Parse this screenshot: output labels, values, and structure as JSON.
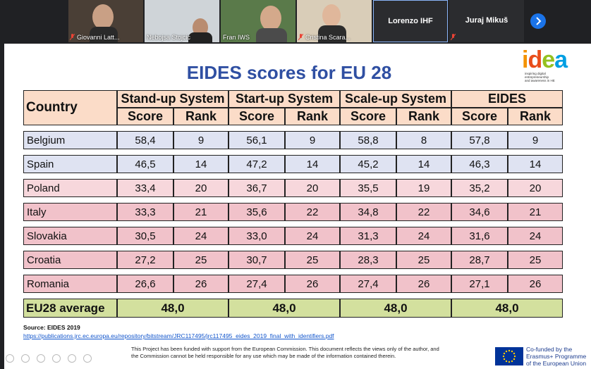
{
  "participants": [
    {
      "name": "Giovanni Latt...",
      "muted": true
    },
    {
      "name": "Nebojsa Stojcic",
      "muted": false
    },
    {
      "name": "Fran IWS",
      "muted": false
    },
    {
      "name": "Cristina Scara...",
      "muted": true
    },
    {
      "name": "Lorenzo IHF",
      "muted": false,
      "video_off": true
    },
    {
      "name": "Juraj Mikuš",
      "muted": true,
      "video_off": true
    }
  ],
  "next_icon": "chevron-right-icon",
  "slide": {
    "title": "EIDES scores for EU 28",
    "logo": {
      "word": "idea",
      "tagline": [
        "inspiring digital",
        "entrepreneurship",
        "and awareness in HE"
      ]
    },
    "table": {
      "country_header": "Country",
      "groups": [
        "Stand-up System",
        "Start-up System",
        "Scale-up System",
        "EIDES"
      ],
      "sub_headers": [
        "Score",
        "Rank"
      ],
      "rows": [
        {
          "country": "Belgium",
          "values": [
            "58,4",
            "9",
            "56,1",
            "9",
            "58,8",
            "8",
            "57,8",
            "9"
          ],
          "color": "#dfe3f2"
        },
        {
          "country": "Spain",
          "values": [
            "46,5",
            "14",
            "47,2",
            "14",
            "45,2",
            "14",
            "46,3",
            "14"
          ],
          "color": "#dfe3f2"
        },
        {
          "country": "Poland",
          "values": [
            "33,4",
            "20",
            "36,7",
            "20",
            "35,5",
            "19",
            "35,2",
            "20"
          ],
          "color": "#f7d7dc"
        },
        {
          "country": "Italy",
          "values": [
            "33,3",
            "21",
            "35,6",
            "22",
            "34,8",
            "22",
            "34,6",
            "21"
          ],
          "color": "#f1c2ca"
        },
        {
          "country": "Slovakia",
          "values": [
            "30,5",
            "24",
            "33,0",
            "24",
            "31,3",
            "24",
            "31,6",
            "24"
          ],
          "color": "#f1c2ca"
        },
        {
          "country": "Croatia",
          "values": [
            "27,2",
            "25",
            "30,7",
            "25",
            "28,3",
            "25",
            "28,7",
            "25"
          ],
          "color": "#f1c2ca"
        },
        {
          "country": "Romania",
          "values": [
            "26,6",
            "26",
            "27,4",
            "26",
            "27,4",
            "26",
            "27,1",
            "26"
          ],
          "color": "#f1c2ca"
        }
      ],
      "average": {
        "label": "EU28 average",
        "values": [
          "48,0",
          "48,0",
          "48,0",
          "48,0"
        ]
      }
    },
    "source_label": "Source: EIDES 2019",
    "source_url": "https://publications.jrc.ec.europa.eu/repository/bitstream/JRC117495/jrc117495_eides_2019_final_with_identifiers.pdf",
    "disclaimer": "This Project has been funded with support from the European Commission. This document reflects the views only of the author, and the Commission cannot be held responsible for any use which may be made of the information contained therein.",
    "eu_funding": [
      "Co-funded by the",
      "Erasmus+ Programme",
      "of the European Union"
    ]
  }
}
